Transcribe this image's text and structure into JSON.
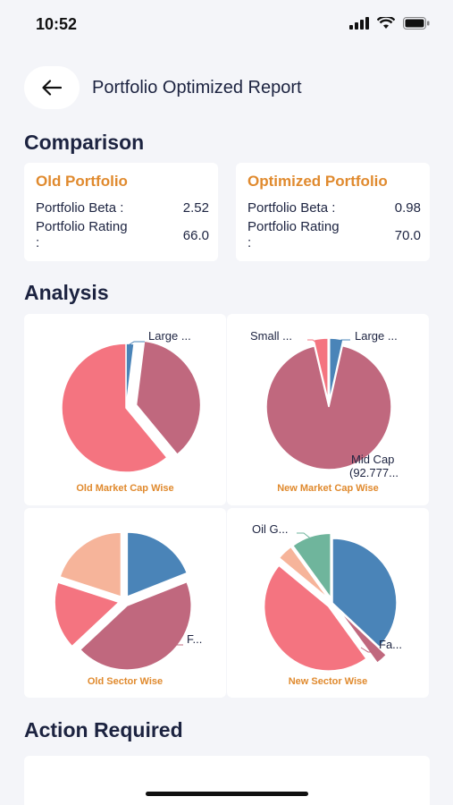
{
  "status": {
    "time": "10:52"
  },
  "header": {
    "title": "Portfolio Optimized Report"
  },
  "sections": {
    "comparison": "Comparison",
    "analysis": "Analysis",
    "action": "Action Required"
  },
  "old_portfolio": {
    "title": "Old Portfolio",
    "beta_label": "Portfolio Beta :",
    "beta_value": "2.52",
    "rating_label": "Portfolio Rating :",
    "rating_value": "66.0"
  },
  "optimized_portfolio": {
    "title": "Optimized Portfolio",
    "beta_label": "Portfolio Beta :",
    "beta_value": "0.98",
    "rating_label": "Portfolio Rating :",
    "rating_value": "70.0"
  },
  "charts": {
    "old_market_cap": {
      "caption": "Old Market Cap Wise",
      "labels": [
        "Large ..."
      ]
    },
    "new_market_cap": {
      "caption": "New Market Cap Wise",
      "labels": [
        "Small ...",
        "Large ...",
        "Mid Cap",
        "(92.777..."
      ]
    },
    "old_sector": {
      "caption": "Old Sector Wise",
      "labels": [
        "F..."
      ]
    },
    "new_sector": {
      "caption": "New Sector Wise",
      "labels": [
        "Oil G...",
        "Fa..."
      ]
    }
  },
  "colors": {
    "accent": "#e08a2e",
    "title": "#1c2340",
    "pink": "#f47480",
    "mauve": "#c0687e",
    "blue": "#4a84b8",
    "peach": "#f6b49a",
    "teal": "#6fb59c"
  },
  "chart_data": [
    {
      "type": "pie",
      "title": "Old Market Cap Wise",
      "slices": [
        {
          "label": "Large ...",
          "value": 2,
          "color": "#4a84b8"
        },
        {
          "label": "",
          "value": 37,
          "color": "#c0687e"
        },
        {
          "label": "",
          "value": 61,
          "color": "#f47480"
        }
      ]
    },
    {
      "type": "pie",
      "title": "New Market Cap Wise",
      "slices": [
        {
          "label": "Large ...",
          "value": 3.5,
          "color": "#4a84b8"
        },
        {
          "label": "Mid Cap (92.777...",
          "value": 92.78,
          "color": "#c0687e"
        },
        {
          "label": "Small ...",
          "value": 3.7,
          "color": "#f47480"
        }
      ]
    },
    {
      "type": "pie",
      "title": "Old Sector Wise",
      "slices": [
        {
          "label": "",
          "value": 19,
          "color": "#4a84b8"
        },
        {
          "label": "F...",
          "value": 44,
          "color": "#c0687e"
        },
        {
          "label": "",
          "value": 17,
          "color": "#f47480"
        },
        {
          "label": "",
          "value": 20,
          "color": "#f6b49a"
        }
      ]
    },
    {
      "type": "pie",
      "title": "New Sector Wise",
      "slices": [
        {
          "label": "",
          "value": 37,
          "color": "#4a84b8"
        },
        {
          "label": "Fa...",
          "value": 3,
          "color": "#c0687e"
        },
        {
          "label": "",
          "value": 46,
          "color": "#f47480"
        },
        {
          "label": "",
          "value": 4,
          "color": "#f6b49a"
        },
        {
          "label": "Oil G...",
          "value": 10,
          "color": "#6fb59c"
        }
      ]
    }
  ]
}
